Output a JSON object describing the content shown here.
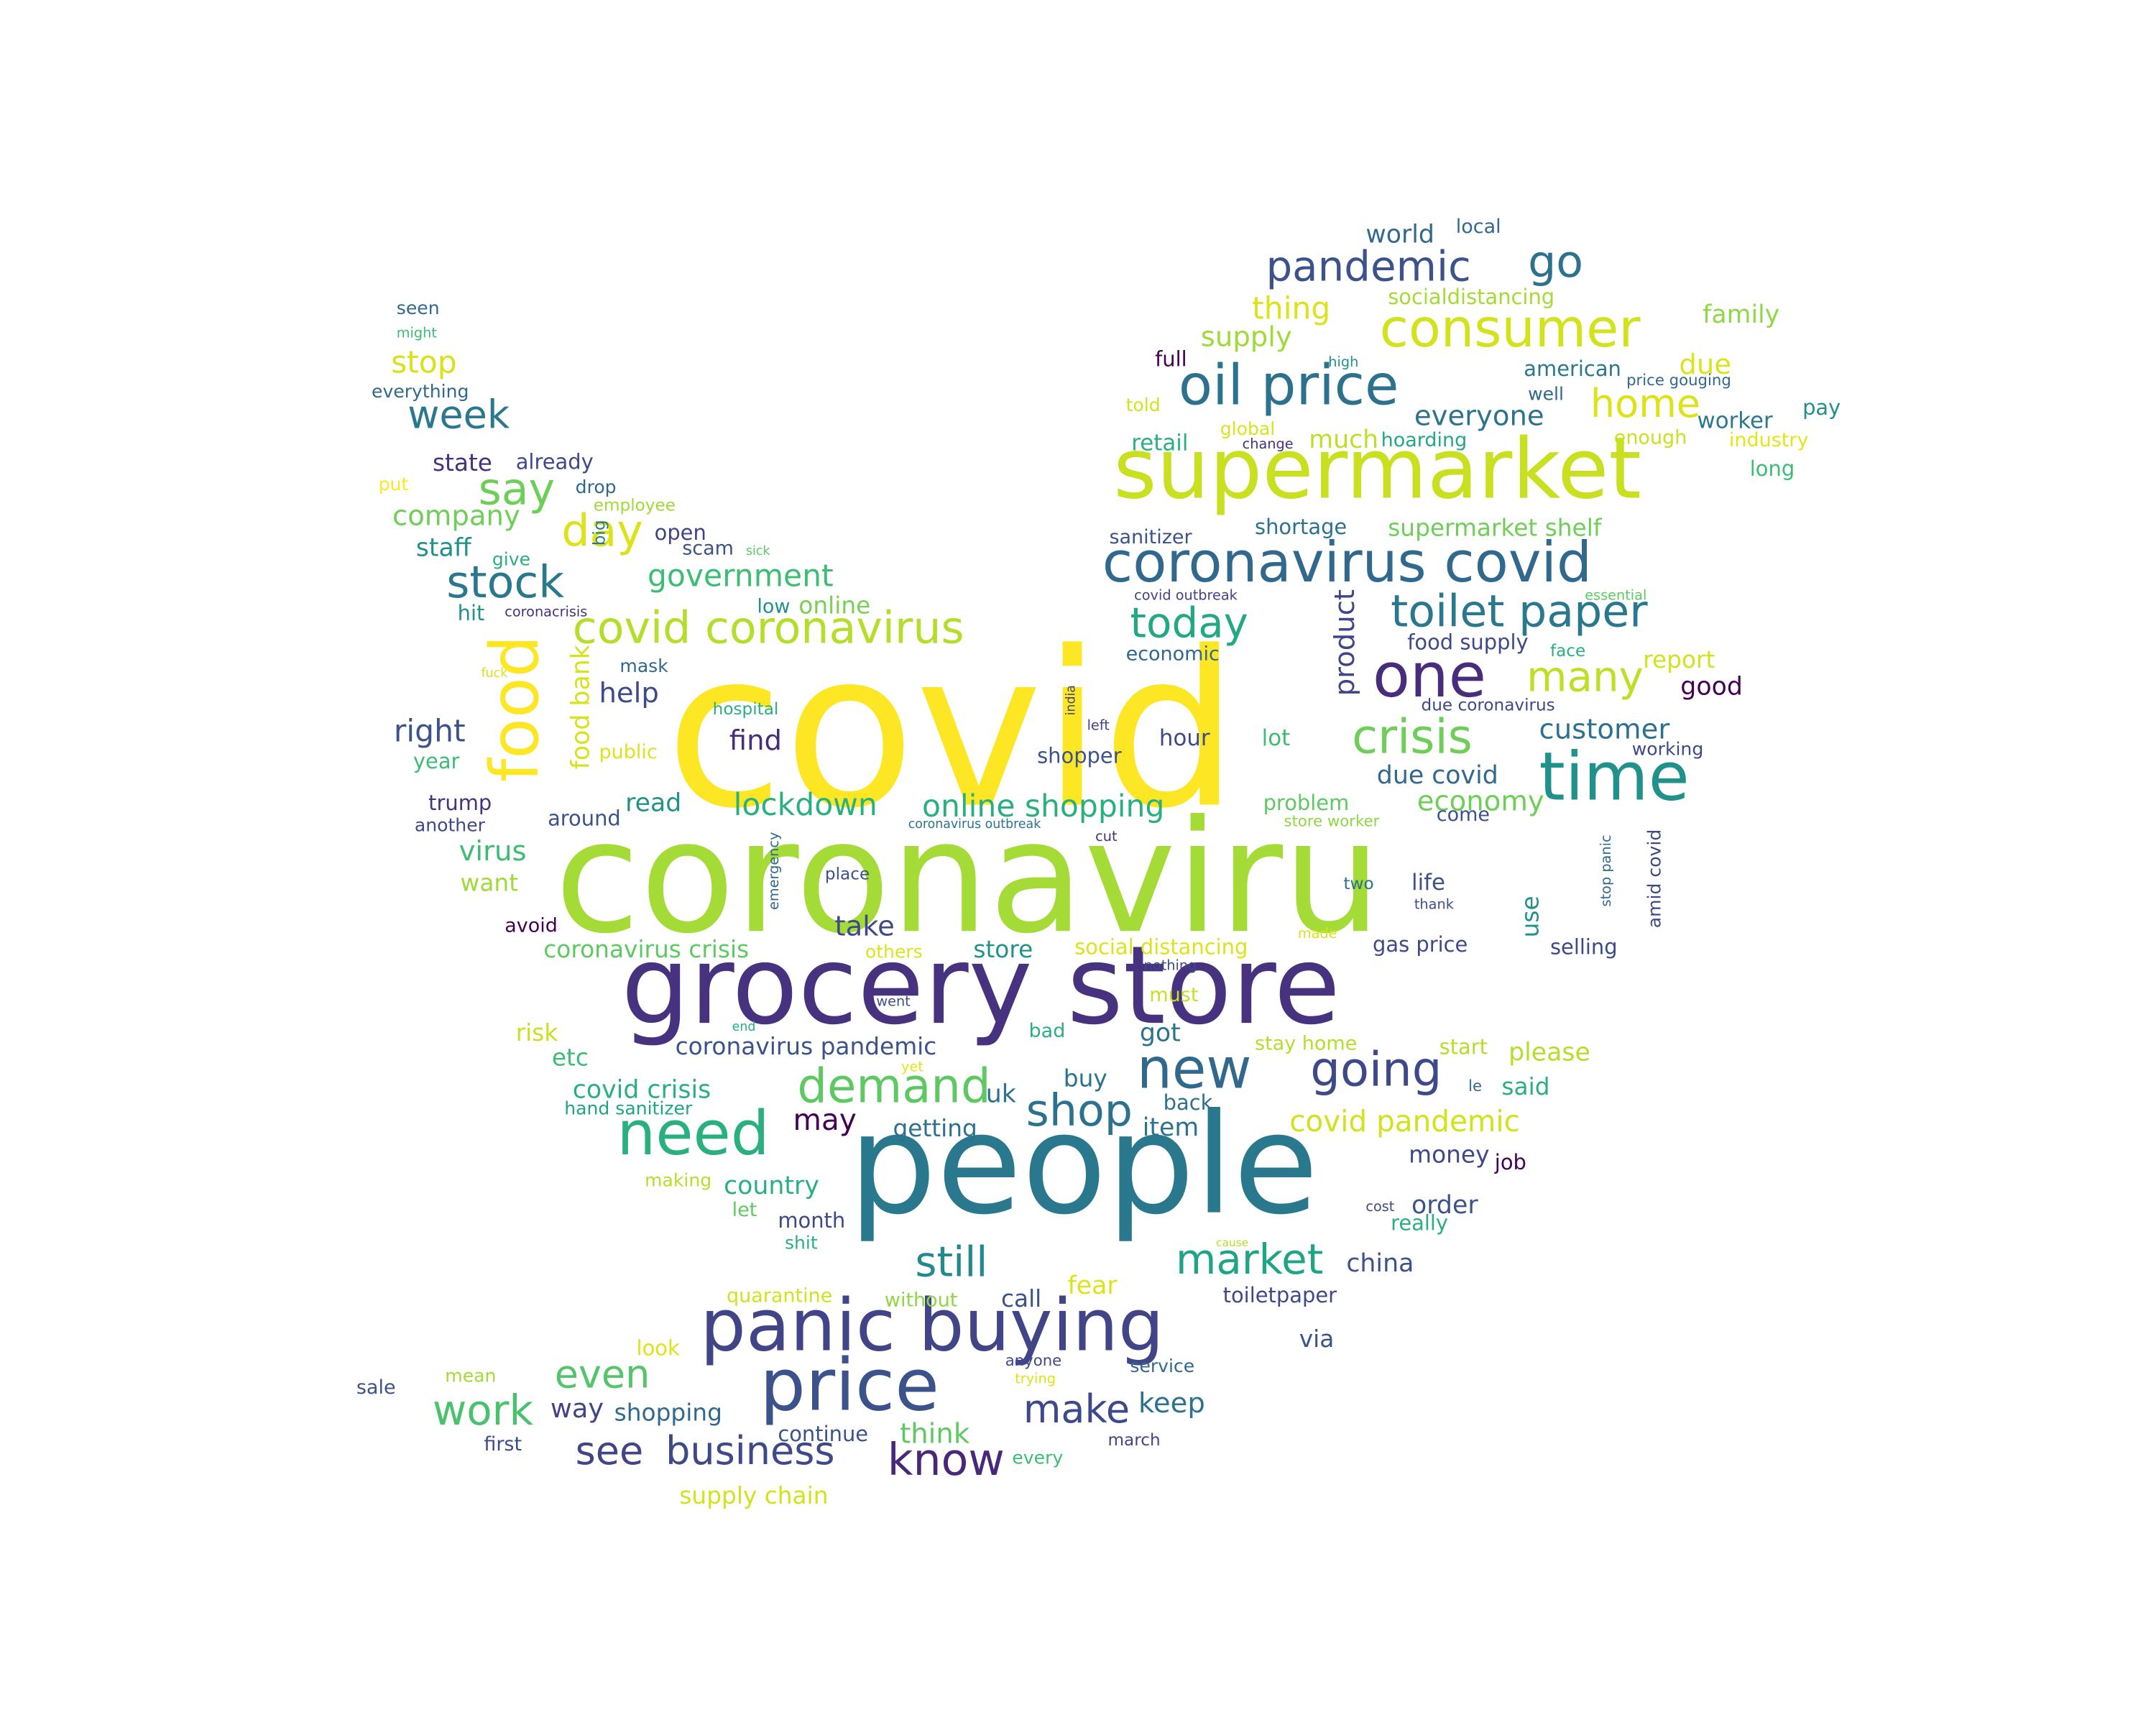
{
  "words": [
    {
      "text": "covid",
      "color": "#fde725",
      "weight": 100
    },
    {
      "text": "coronaviru",
      "color": "#a5db36",
      "weight": 96
    },
    {
      "text": "grocery store",
      "color": "#46327e",
      "weight": 62
    },
    {
      "text": "people",
      "color": "#2a788e",
      "weight": 70
    },
    {
      "text": "supermarket",
      "color": "#c8e020",
      "weight": 44
    },
    {
      "text": "panic buying",
      "color": "#414487",
      "weight": 33
    },
    {
      "text": "price",
      "color": "#3b528b",
      "weight": 33
    },
    {
      "text": "food",
      "color": "#fde725",
      "weight": 30
    },
    {
      "text": "time",
      "color": "#21918c",
      "weight": 30
    },
    {
      "text": "coronavirus covid",
      "color": "#31688e",
      "weight": 28
    },
    {
      "text": "oil price",
      "color": "#2c728e",
      "weight": 28
    },
    {
      "text": "need",
      "color": "#2ab07f",
      "weight": 30
    },
    {
      "text": "new",
      "color": "#31688e",
      "weight": 28
    },
    {
      "text": "one",
      "color": "#472d7b",
      "weight": 28
    },
    {
      "text": "covid coronavirus",
      "color": "#b5de2b",
      "weight": 24
    },
    {
      "text": "consumer",
      "color": "#d2e21b",
      "weight": 25
    },
    {
      "text": "demand",
      "color": "#5ec962",
      "weight": 24
    },
    {
      "text": "going",
      "color": "#3e4989",
      "weight": 24
    },
    {
      "text": "toilet paper",
      "color": "#2a788e",
      "weight": 23
    },
    {
      "text": "crisis",
      "color": "#6ece58",
      "weight": 23
    },
    {
      "text": "today",
      "color": "#22a884",
      "weight": 23
    },
    {
      "text": "stock",
      "color": "#2a788e",
      "weight": 23
    },
    {
      "text": "pandemic",
      "color": "#3b528b",
      "weight": 22
    },
    {
      "text": "market",
      "color": "#20a486",
      "weight": 22
    },
    {
      "text": "shop",
      "color": "#2c728e",
      "weight": 22
    },
    {
      "text": "still",
      "color": "#23898e",
      "weight": 21
    },
    {
      "text": "make",
      "color": "#3e4989",
      "weight": 21
    },
    {
      "text": "know",
      "color": "#482878",
      "weight": 21
    },
    {
      "text": "business",
      "color": "#3e4989",
      "weight": 20
    },
    {
      "text": "see",
      "color": "#414487",
      "weight": 20
    },
    {
      "text": "work",
      "color": "#4ac16d",
      "weight": 20
    },
    {
      "text": "even",
      "color": "#54c568",
      "weight": 19
    },
    {
      "text": "week",
      "color": "#2a788e",
      "weight": 19
    },
    {
      "text": "say",
      "color": "#6ece58",
      "weight": 19
    },
    {
      "text": "day",
      "color": "#dde318",
      "weight": 19
    },
    {
      "text": "go",
      "color": "#2c728e",
      "weight": 19
    },
    {
      "text": "home",
      "color": "#dde318",
      "weight": 19
    },
    {
      "text": "many",
      "color": "#bddf26",
      "weight": 19
    },
    {
      "text": "product",
      "color": "#414487",
      "weight": 13
    },
    {
      "text": "food bank",
      "color": "#d8e219",
      "weight": 12
    },
    {
      "text": "thing",
      "color": "#dde318",
      "weight": 15
    },
    {
      "text": "everyone",
      "color": "#2c728e",
      "weight": 14
    },
    {
      "text": "supply",
      "color": "#a0da39",
      "weight": 13
    },
    {
      "text": "retail",
      "color": "#2ab07f",
      "weight": 12
    },
    {
      "text": "much",
      "color": "#bddf26",
      "weight": 12
    },
    {
      "text": "hoarding",
      "color": "#22a884",
      "weight": 10
    },
    {
      "text": "worker",
      "color": "#2a788e",
      "weight": 12
    },
    {
      "text": "due",
      "color": "#dde318",
      "weight": 12
    },
    {
      "text": "family",
      "color": "#8fd744",
      "weight": 11
    },
    {
      "text": "industry",
      "color": "#e5e419",
      "weight": 9
    },
    {
      "text": "pay",
      "color": "#21918c",
      "weight": 10
    },
    {
      "text": "enough",
      "color": "#cae11f",
      "weight": 9
    },
    {
      "text": "long",
      "color": "#3dbc74",
      "weight": 10
    },
    {
      "text": "world",
      "color": "#31688e",
      "weight": 12
    },
    {
      "text": "local",
      "color": "#31688e",
      "weight": 9
    },
    {
      "text": "socialdistancing",
      "color": "#a5db36",
      "weight": 10
    },
    {
      "text": "american",
      "color": "#2a788e",
      "weight": 10
    },
    {
      "text": "price gouging",
      "color": "#31688e",
      "weight": 7
    },
    {
      "text": "well",
      "color": "#31688e",
      "weight": 8
    },
    {
      "text": "high",
      "color": "#21918c",
      "weight": 6
    },
    {
      "text": "full",
      "color": "#440154",
      "weight": 10
    },
    {
      "text": "told",
      "color": "#d2e21b",
      "weight": 8
    },
    {
      "text": "global",
      "color": "#dde318",
      "weight": 8
    },
    {
      "text": "change",
      "color": "#46327e",
      "weight": 6
    },
    {
      "text": "sanitizer",
      "color": "#3b528b",
      "weight": 10
    },
    {
      "text": "shortage",
      "color": "#2c728e",
      "weight": 10
    },
    {
      "text": "supermarket shelf",
      "color": "#6ece58",
      "weight": 11
    },
    {
      "text": "covid outbreak",
      "color": "#414487",
      "weight": 6
    },
    {
      "text": "essential",
      "color": "#5ec962",
      "weight": 6
    },
    {
      "text": "economic",
      "color": "#31688e",
      "weight": 9
    },
    {
      "text": "food supply",
      "color": "#3e4989",
      "weight": 10
    },
    {
      "text": "face",
      "color": "#2ab07f",
      "weight": 7
    },
    {
      "text": "report",
      "color": "#d2e21b",
      "weight": 11
    },
    {
      "text": "good",
      "color": "#440154",
      "weight": 11
    },
    {
      "text": "due coronavirus",
      "color": "#3e4989",
      "weight": 7
    },
    {
      "text": "customer",
      "color": "#2c728e",
      "weight": 12
    },
    {
      "text": "working",
      "color": "#3e4989",
      "weight": 9
    },
    {
      "text": "due covid",
      "color": "#31688e",
      "weight": 11
    },
    {
      "text": "economy",
      "color": "#6ece58",
      "weight": 12
    },
    {
      "text": "come",
      "color": "#3b528b",
      "weight": 9
    },
    {
      "text": "problem",
      "color": "#5ec962",
      "weight": 10
    },
    {
      "text": "store worker",
      "color": "#8fd744",
      "weight": 8
    },
    {
      "text": "life",
      "color": "#3b528b",
      "weight": 11
    },
    {
      "text": "thank",
      "color": "#3b528b",
      "weight": 6
    },
    {
      "text": "two",
      "color": "#2c728e",
      "weight": 8
    },
    {
      "text": "stop panic",
      "color": "#31688e",
      "weight": 6
    },
    {
      "text": "amid covid",
      "color": "#3e4989",
      "weight": 8
    },
    {
      "text": "use",
      "color": "#21918c",
      "weight": 11
    },
    {
      "text": "selling",
      "color": "#3e4989",
      "weight": 9
    },
    {
      "text": "gas price",
      "color": "#3e4989",
      "weight": 10
    },
    {
      "text": "made",
      "color": "#d8e219",
      "weight": 6
    },
    {
      "text": "lot",
      "color": "#3dbc74",
      "weight": 10
    },
    {
      "text": "hour",
      "color": "#3e4989",
      "weight": 10
    },
    {
      "text": "left",
      "color": "#414487",
      "weight": 6
    },
    {
      "text": "india",
      "color": "#414487",
      "weight": 6
    },
    {
      "text": "shopper",
      "color": "#3b528b",
      "weight": 9
    },
    {
      "text": "online shopping",
      "color": "#2ab07f",
      "weight": 15
    },
    {
      "text": "coronavirus outbreak",
      "color": "#2c728e",
      "weight": 6
    },
    {
      "text": "cut",
      "color": "#46327e",
      "weight": 6
    },
    {
      "text": "place",
      "color": "#3b528b",
      "weight": 8
    },
    {
      "text": "emergency",
      "color": "#31688e",
      "weight": 6
    },
    {
      "text": "take",
      "color": "#3e4989",
      "weight": 13
    },
    {
      "text": "lockdown",
      "color": "#2ab07f",
      "weight": 15
    },
    {
      "text": "find",
      "color": "#472d7b",
      "weight": 12
    },
    {
      "text": "hospital",
      "color": "#2ab07f",
      "weight": 8
    },
    {
      "text": "low",
      "color": "#21918c",
      "weight": 9
    },
    {
      "text": "online",
      "color": "#7ad151",
      "weight": 10
    },
    {
      "text": "read",
      "color": "#21918c",
      "weight": 12
    },
    {
      "text": "around",
      "color": "#3b528b",
      "weight": 10
    },
    {
      "text": "government",
      "color": "#3dbc74",
      "weight": 14
    },
    {
      "text": "help",
      "color": "#3e4989",
      "weight": 12
    },
    {
      "text": "mask",
      "color": "#31688e",
      "weight": 9
    },
    {
      "text": "public",
      "color": "#dde318",
      "weight": 9
    },
    {
      "text": "open",
      "color": "#414487",
      "weight": 10
    },
    {
      "text": "scam",
      "color": "#3b528b",
      "weight": 9
    },
    {
      "text": "sick",
      "color": "#5ec962",
      "weight": 6
    },
    {
      "text": "big",
      "color": "#2a788e",
      "weight": 7
    },
    {
      "text": "drop",
      "color": "#31688e",
      "weight": 9
    },
    {
      "text": "employee",
      "color": "#a0da39",
      "weight": 7
    },
    {
      "text": "state",
      "color": "#46327e",
      "weight": 11
    },
    {
      "text": "already",
      "color": "#3e4989",
      "weight": 10
    },
    {
      "text": "company",
      "color": "#6ece58",
      "weight": 13
    },
    {
      "text": "staff",
      "color": "#21918c",
      "weight": 12
    },
    {
      "text": "give",
      "color": "#2ab07f",
      "weight": 8
    },
    {
      "text": "hit",
      "color": "#21918c",
      "weight": 10
    },
    {
      "text": "coronacrisis",
      "color": "#46327e",
      "weight": 6
    },
    {
      "text": "fuck",
      "color": "#d8e219",
      "weight": 6
    },
    {
      "text": "right",
      "color": "#3b528b",
      "weight": 13
    },
    {
      "text": "year",
      "color": "#3dbc74",
      "weight": 10
    },
    {
      "text": "trump",
      "color": "#46327e",
      "weight": 10
    },
    {
      "text": "another",
      "color": "#3e4989",
      "weight": 9
    },
    {
      "text": "virus",
      "color": "#3dbc74",
      "weight": 13
    },
    {
      "text": "want",
      "color": "#a0da39",
      "weight": 11
    },
    {
      "text": "avoid",
      "color": "#440154",
      "weight": 9
    },
    {
      "text": "stop",
      "color": "#d8e219",
      "weight": 13
    },
    {
      "text": "everything",
      "color": "#31688e",
      "weight": 8
    },
    {
      "text": "seen",
      "color": "#31688e",
      "weight": 8
    },
    {
      "text": "might",
      "color": "#3dbc74",
      "weight": 6
    },
    {
      "text": "put",
      "color": "#fde725",
      "weight": 8
    },
    {
      "text": "coronavirus crisis",
      "color": "#5ec962",
      "weight": 11
    },
    {
      "text": "others",
      "color": "#dde318",
      "weight": 9
    },
    {
      "text": "store",
      "color": "#21918c",
      "weight": 11
    },
    {
      "text": "social distancing",
      "color": "#dde318",
      "weight": 10
    },
    {
      "text": "nothing",
      "color": "#3e4989",
      "weight": 6
    },
    {
      "text": "must",
      "color": "#c8e020",
      "weight": 10
    },
    {
      "text": "went",
      "color": "#3b528b",
      "weight": 6
    },
    {
      "text": "risk",
      "color": "#c8e020",
      "weight": 12
    },
    {
      "text": "end",
      "color": "#2ab07f",
      "weight": 6
    },
    {
      "text": "bad",
      "color": "#2ab07f",
      "weight": 9
    },
    {
      "text": "coronavirus pandemic",
      "color": "#3b528b",
      "weight": 12
    },
    {
      "text": "got",
      "color": "#2c728e",
      "weight": 12
    },
    {
      "text": "stay home",
      "color": "#b5de2b",
      "weight": 10
    },
    {
      "text": "start",
      "color": "#b5de2b",
      "weight": 10
    },
    {
      "text": "please",
      "color": "#b5de2b",
      "weight": 11
    },
    {
      "text": "etc",
      "color": "#3dbc74",
      "weight": 11
    },
    {
      "text": "yet",
      "color": "#e5e419",
      "weight": 6
    },
    {
      "text": "buy",
      "color": "#2c728e",
      "weight": 12
    },
    {
      "text": "le",
      "color": "#31688e",
      "weight": 6
    },
    {
      "text": "said",
      "color": "#2ab07f",
      "weight": 11
    },
    {
      "text": "covid crisis",
      "color": "#2ab07f",
      "weight": 13
    },
    {
      "text": "hand sanitizer",
      "color": "#20a486",
      "weight": 9
    },
    {
      "text": "uk",
      "color": "#2c728e",
      "weight": 12
    },
    {
      "text": "back",
      "color": "#2c728e",
      "weight": 11
    },
    {
      "text": "may",
      "color": "#440154",
      "weight": 13
    },
    {
      "text": "getting",
      "color": "#2c728e",
      "weight": 12
    },
    {
      "text": "item",
      "color": "#2c728e",
      "weight": 12
    },
    {
      "text": "covid pandemic",
      "color": "#d2e21b",
      "weight": 14
    },
    {
      "text": "money",
      "color": "#3e4989",
      "weight": 11
    },
    {
      "text": "job",
      "color": "#440154",
      "weight": 10
    },
    {
      "text": "making",
      "color": "#b5de2b",
      "weight": 9
    },
    {
      "text": "country",
      "color": "#2ab07f",
      "weight": 12
    },
    {
      "text": "order",
      "color": "#3b528b",
      "weight": 12
    },
    {
      "text": "cost",
      "color": "#3e4989",
      "weight": 6
    },
    {
      "text": "really",
      "color": "#2ab07f",
      "weight": 10
    },
    {
      "text": "let",
      "color": "#5ec962",
      "weight": 9
    },
    {
      "text": "month",
      "color": "#3e4989",
      "weight": 10
    },
    {
      "text": "shit",
      "color": "#2ab07f",
      "weight": 9
    },
    {
      "text": "cause",
      "color": "#b5de2b",
      "weight": 5
    },
    {
      "text": "china",
      "color": "#3b528b",
      "weight": 12
    },
    {
      "text": "fear",
      "color": "#dde318",
      "weight": 12
    },
    {
      "text": "quarantine",
      "color": "#d2e21b",
      "weight": 9
    },
    {
      "text": "without",
      "color": "#8fd744",
      "weight": 9
    },
    {
      "text": "call",
      "color": "#3b528b",
      "weight": 11
    },
    {
      "text": "toiletpaper",
      "color": "#3e4989",
      "weight": 10
    },
    {
      "text": "via",
      "color": "#3b528b",
      "weight": 11
    },
    {
      "text": "look",
      "color": "#dde318",
      "weight": 10
    },
    {
      "text": "anyone",
      "color": "#3e4989",
      "weight": 8
    },
    {
      "text": "trying",
      "color": "#dde318",
      "weight": 7
    },
    {
      "text": "service",
      "color": "#31688e",
      "weight": 9
    },
    {
      "text": "sale",
      "color": "#3b528b",
      "weight": 9
    },
    {
      "text": "mean",
      "color": "#a5db36",
      "weight": 9
    },
    {
      "text": "way",
      "color": "#414487",
      "weight": 13
    },
    {
      "text": "shopping",
      "color": "#31688e",
      "weight": 11
    },
    {
      "text": "keep",
      "color": "#2c728e",
      "weight": 13
    },
    {
      "text": "think",
      "color": "#5ec962",
      "weight": 14
    },
    {
      "text": "continue",
      "color": "#3b528b",
      "weight": 10
    },
    {
      "text": "first",
      "color": "#3e4989",
      "weight": 9
    },
    {
      "text": "every",
      "color": "#3dbc74",
      "weight": 9
    },
    {
      "text": "march",
      "color": "#414487",
      "weight": 8
    },
    {
      "text": "supply chain",
      "color": "#d2e21b",
      "weight": 11
    }
  ]
}
